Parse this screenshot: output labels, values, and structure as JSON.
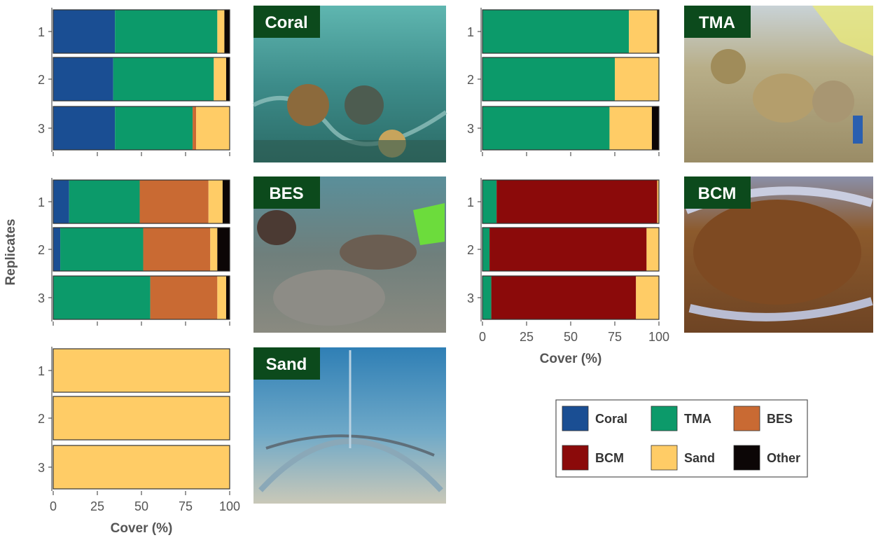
{
  "y_axis_label": "Replicates",
  "colors": {
    "Coral": "#1a4e93",
    "TMA": "#0c9a6a",
    "BES": "#c96a33",
    "BCM": "#8b0a0a",
    "Sand": "#ffcc66",
    "Other": "#0c0606",
    "label_bg": "#0c4a1c"
  },
  "legend": {
    "items": [
      {
        "name": "Coral",
        "swatch_icon": "square-swatch"
      },
      {
        "name": "TMA",
        "swatch_icon": "square-swatch"
      },
      {
        "name": "BES",
        "swatch_icon": "square-swatch"
      },
      {
        "name": "BCM",
        "swatch_icon": "square-swatch"
      },
      {
        "name": "Sand",
        "swatch_icon": "square-swatch"
      },
      {
        "name": "Other",
        "swatch_icon": "square-swatch"
      }
    ]
  },
  "photos": [
    {
      "label": "Coral",
      "scene": "underwater coral colonies inside mesocosm enclosure"
    },
    {
      "label": "BES",
      "scene": "bare encrusted substrate rubble"
    },
    {
      "label": "Sand",
      "scene": "sandy bottom inside mesh tent"
    },
    {
      "label": "TMA",
      "scene": "turf macroalgae on rocks"
    },
    {
      "label": "BCM",
      "scene": "benthic cyanobacterial mat"
    }
  ],
  "chart_data": [
    {
      "type": "bar",
      "orientation": "horizontal",
      "stacked": true,
      "panel": "Coral",
      "categories": [
        "1",
        "2",
        "3"
      ],
      "xlabel": "",
      "xlim": [
        0,
        100
      ],
      "series": [
        {
          "name": "Coral",
          "values": [
            35,
            34,
            35
          ]
        },
        {
          "name": "TMA",
          "values": [
            58,
            57,
            44
          ]
        },
        {
          "name": "BES",
          "values": [
            0,
            0,
            2
          ]
        },
        {
          "name": "BCM",
          "values": [
            0,
            0,
            0
          ]
        },
        {
          "name": "Sand",
          "values": [
            4,
            7,
            19
          ]
        },
        {
          "name": "Other",
          "values": [
            3,
            2,
            0
          ]
        }
      ]
    },
    {
      "type": "bar",
      "orientation": "horizontal",
      "stacked": true,
      "panel": "BES",
      "categories": [
        "1",
        "2",
        "3"
      ],
      "xlabel": "",
      "xlim": [
        0,
        100
      ],
      "series": [
        {
          "name": "Coral",
          "values": [
            9,
            4,
            0
          ]
        },
        {
          "name": "TMA",
          "values": [
            40,
            47,
            55
          ]
        },
        {
          "name": "BES",
          "values": [
            39,
            38,
            38
          ]
        },
        {
          "name": "BCM",
          "values": [
            0,
            0,
            0
          ]
        },
        {
          "name": "Sand",
          "values": [
            8,
            4,
            5
          ]
        },
        {
          "name": "Other",
          "values": [
            4,
            7,
            2
          ]
        }
      ]
    },
    {
      "type": "bar",
      "orientation": "horizontal",
      "stacked": true,
      "panel": "Sand",
      "categories": [
        "1",
        "2",
        "3"
      ],
      "xlabel": "Cover (%)",
      "xlim": [
        0,
        100
      ],
      "xticks": [
        0,
        25,
        50,
        75,
        100
      ],
      "series": [
        {
          "name": "Coral",
          "values": [
            0,
            0,
            0
          ]
        },
        {
          "name": "TMA",
          "values": [
            0,
            0,
            0
          ]
        },
        {
          "name": "BES",
          "values": [
            0,
            0,
            0
          ]
        },
        {
          "name": "BCM",
          "values": [
            0,
            0,
            0
          ]
        },
        {
          "name": "Sand",
          "values": [
            100,
            100,
            100
          ]
        },
        {
          "name": "Other",
          "values": [
            0,
            0,
            0
          ]
        }
      ]
    },
    {
      "type": "bar",
      "orientation": "horizontal",
      "stacked": true,
      "panel": "TMA",
      "categories": [
        "1",
        "2",
        "3"
      ],
      "xlabel": "",
      "xlim": [
        0,
        100
      ],
      "series": [
        {
          "name": "Coral",
          "values": [
            0,
            0,
            0
          ]
        },
        {
          "name": "TMA",
          "values": [
            83,
            75,
            72
          ]
        },
        {
          "name": "BES",
          "values": [
            0,
            0,
            0
          ]
        },
        {
          "name": "BCM",
          "values": [
            0,
            0,
            0
          ]
        },
        {
          "name": "Sand",
          "values": [
            16,
            25,
            24
          ]
        },
        {
          "name": "Other",
          "values": [
            1,
            0,
            4
          ]
        }
      ]
    },
    {
      "type": "bar",
      "orientation": "horizontal",
      "stacked": true,
      "panel": "BCM",
      "categories": [
        "1",
        "2",
        "3"
      ],
      "xlabel": "Cover (%)",
      "xlim": [
        0,
        100
      ],
      "xticks": [
        0,
        25,
        50,
        75,
        100
      ],
      "series": [
        {
          "name": "Coral",
          "values": [
            0,
            0,
            0
          ]
        },
        {
          "name": "TMA",
          "values": [
            8,
            4,
            5
          ]
        },
        {
          "name": "BES",
          "values": [
            0,
            0,
            0
          ]
        },
        {
          "name": "BCM",
          "values": [
            91,
            89,
            82
          ]
        },
        {
          "name": "Sand",
          "values": [
            1,
            7,
            13
          ]
        },
        {
          "name": "Other",
          "values": [
            0,
            0,
            0
          ]
        }
      ]
    }
  ]
}
